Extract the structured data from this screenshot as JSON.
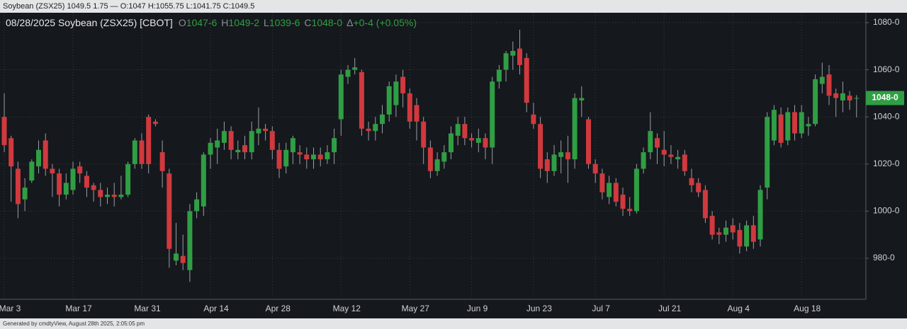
{
  "window_title": "Soybean (ZSX25) 1049.5 1.75 — O:1047 H:1055.75 L:1041.75 C:1049.5",
  "footer": "Generated by cmdtyView, August 28th 2025, 2:05:05 pm",
  "chart_data": {
    "type": "candlestick",
    "title": "08/28/2025 Soybean (ZSX25) [CBOT]",
    "quote": [
      {
        "key": "O",
        "value": "1047-6"
      },
      {
        "key": "H",
        "value": "1049-2"
      },
      {
        "key": "L",
        "value": "1039-6"
      },
      {
        "key": "C",
        "value": "1048-0"
      }
    ],
    "change_symbol": "Δ",
    "change": "+0-4 (+0.05%)",
    "up_color": "#2f9e44",
    "down_color": "#d0393e",
    "grid": true,
    "last_price": {
      "value": 1048,
      "label": "1048-0"
    },
    "ylim": [
      962.6,
      1084.2
    ],
    "yticks": [
      {
        "value": 980,
        "label": "980-0"
      },
      {
        "value": 1000,
        "label": "1000-0"
      },
      {
        "value": 1020,
        "label": "1020-0"
      },
      {
        "value": 1040,
        "label": "1040-0"
      },
      {
        "value": 1060,
        "label": "1060-0"
      },
      {
        "value": 1080,
        "label": "1080-0"
      }
    ],
    "categories": [
      "Mar 3",
      null,
      null,
      null,
      null,
      null,
      null,
      null,
      null,
      null,
      "Mar 17",
      null,
      null,
      null,
      null,
      null,
      null,
      null,
      null,
      null,
      "Mar 31",
      null,
      null,
      null,
      null,
      null,
      null,
      null,
      null,
      null,
      "Apr 14",
      null,
      null,
      null,
      null,
      null,
      null,
      null,
      null,
      "Apr 28",
      null,
      null,
      null,
      null,
      null,
      null,
      null,
      null,
      null,
      "May 12",
      null,
      null,
      null,
      null,
      null,
      null,
      null,
      null,
      null,
      "May 27",
      null,
      null,
      null,
      null,
      null,
      null,
      null,
      null,
      "Jun 9",
      null,
      null,
      null,
      null,
      null,
      null,
      null,
      null,
      "Jun 23",
      null,
      null,
      null,
      null,
      null,
      null,
      null,
      null,
      "Jul 7",
      null,
      null,
      null,
      null,
      null,
      null,
      null,
      null,
      null,
      "Jul 21",
      null,
      null,
      null,
      null,
      null,
      null,
      null,
      null,
      null,
      "Aug 4",
      null,
      null,
      null,
      null,
      null,
      null,
      null,
      null,
      null,
      "Aug 18",
      null,
      null,
      null,
      null,
      null,
      null,
      null,
      null
    ],
    "open": [
      1040,
      1031,
      1018,
      1005,
      1013,
      1019,
      1030,
      1018,
      1016,
      1007,
      1009,
      1019,
      1015,
      1011,
      1009,
      1006,
      1007,
      1006,
      1007,
      1020,
      1030,
      1040,
      1038,
      1025,
      1016,
      979,
      981,
      975,
      1000,
      1002,
      1024,
      1027,
      1029,
      1034,
      1025,
      1028,
      1025,
      1033,
      1035,
      1034,
      1026,
      1019,
      1025,
      1025,
      1024,
      1022,
      1024,
      1022,
      1025,
      1039,
      1057,
      1060,
      1059,
      1035,
      1034,
      1037,
      1041,
      1045,
      1057,
      1050,
      1045,
      1038,
      1027,
      1017,
      1021,
      1025,
      1032,
      1037,
      1031,
      1029,
      1031,
      1027,
      1055,
      1060,
      1066,
      1069,
      1065,
      1041,
      1037,
      1022,
      1017,
      1023,
      1025,
      1022,
      1047,
      1039,
      1020,
      1016,
      1006,
      1012,
      1007,
      1001,
      1000,
      1018,
      1025,
      1031,
      1026,
      1024,
      1022,
      1024,
      1014,
      1012,
      1009,
      998,
      991,
      990,
      994,
      992,
      985,
      994,
      988,
      1010,
      1030,
      1041,
      1030,
      1042,
      1033,
      1036,
      1037,
      1054,
      1058,
      1050,
      1047,
      1049,
      1047.75
    ],
    "high": [
      1050,
      1032,
      1021,
      1014,
      1022,
      1030,
      1033,
      1020,
      1018,
      1016,
      1021,
      1021,
      1017,
      1012,
      1012,
      1010,
      1012,
      1015,
      1021,
      1031,
      1033,
      1041,
      1039,
      1030,
      1018,
      995,
      990,
      1003,
      1008,
      1025,
      1031,
      1035,
      1038,
      1036,
      1030,
      1032,
      1038,
      1044,
      1037,
      1036,
      1029,
      1029,
      1032,
      1028,
      1027,
      1027,
      1027,
      1028,
      1035,
      1060,
      1062,
      1065,
      1060,
      1038,
      1040,
      1045,
      1055,
      1058,
      1060,
      1052,
      1048,
      1040,
      1030,
      1025,
      1028,
      1036,
      1040,
      1040,
      1033,
      1035,
      1033,
      1057,
      1062,
      1068,
      1072,
      1077,
      1067,
      1046,
      1040,
      1025,
      1028,
      1030,
      1032,
      1050,
      1053,
      1040,
      1022,
      1018,
      1015,
      1014,
      1010,
      1006,
      1020,
      1027,
      1042,
      1033,
      1034,
      1028,
      1026,
      1026,
      1018,
      1014,
      1011,
      1000,
      993,
      996,
      997,
      995,
      996,
      998,
      1011,
      1042,
      1045,
      1044,
      1044,
      1045,
      1045,
      1040,
      1058,
      1063,
      1062,
      1052,
      1055,
      1051,
      1049.25
    ],
    "low": [
      1025,
      1004,
      997,
      1000,
      1012,
      1016,
      1015,
      1006,
      1002,
      1005,
      1007,
      1012,
      1006,
      1004,
      1002,
      1003,
      1002,
      1005,
      1006,
      1018,
      1018,
      1016,
      1036,
      1010,
      976,
      977,
      975,
      970,
      997,
      998,
      1018,
      1020,
      1026,
      1022,
      1022,
      1022,
      1022,
      1028,
      1030,
      1022,
      1014,
      1016,
      1020,
      1020,
      1018,
      1018,
      1019,
      1020,
      1020,
      1032,
      1054,
      1058,
      1032,
      1030,
      1030,
      1033,
      1038,
      1040,
      1044,
      1035,
      1030,
      1020,
      1014,
      1015,
      1018,
      1022,
      1028,
      1028,
      1027,
      1025,
      1022,
      1020,
      1052,
      1055,
      1060,
      1058,
      1042,
      1035,
      1014,
      1012,
      1015,
      1016,
      1012,
      1018,
      1040,
      1018,
      1012,
      1005,
      1003,
      1002,
      998,
      998,
      999,
      1016,
      1022,
      1020,
      1019,
      1020,
      1018,
      1015,
      1008,
      1006,
      995,
      988,
      986,
      987,
      988,
      982,
      983,
      984,
      985,
      1005,
      1028,
      1027,
      1028,
      1030,
      1031,
      1032,
      1036,
      1050,
      1045,
      1040,
      1042,
      1043,
      1039.75
    ],
    "close": [
      1028,
      1019,
      1003,
      1010,
      1021,
      1026,
      1018,
      1016,
      1007,
      1012,
      1018,
      1016,
      1010,
      1009,
      1006,
      1007,
      1006,
      1007,
      1020,
      1030,
      1020,
      1020,
      1037,
      1017,
      984,
      982,
      978,
      1000,
      1005,
      1024,
      1029,
      1030,
      1034,
      1026,
      1026,
      1025,
      1034,
      1035,
      1034,
      1026,
      1018,
      1026,
      1031,
      1024,
      1022,
      1024,
      1022,
      1025,
      1031,
      1058,
      1060,
      1061,
      1035,
      1034,
      1037,
      1041,
      1053,
      1055,
      1050,
      1038,
      1038,
      1027,
      1017,
      1022,
      1025,
      1033,
      1037,
      1031,
      1030,
      1031,
      1027,
      1055,
      1060,
      1067,
      1068,
      1062,
      1046,
      1037,
      1018,
      1017,
      1024,
      1025,
      1022,
      1048,
      1048,
      1020,
      1016,
      1008,
      1012,
      1004,
      1001,
      1000,
      1018,
      1025,
      1034,
      1027,
      1024,
      1023,
      1023,
      1017,
      1011,
      1008,
      997,
      990,
      990,
      993,
      991,
      985,
      994,
      987,
      1009,
      1040,
      1043,
      1029,
      1042,
      1033,
      1042,
      1037,
      1056,
      1057,
      1049,
      1048,
      1050,
      1047,
      1048
    ]
  }
}
